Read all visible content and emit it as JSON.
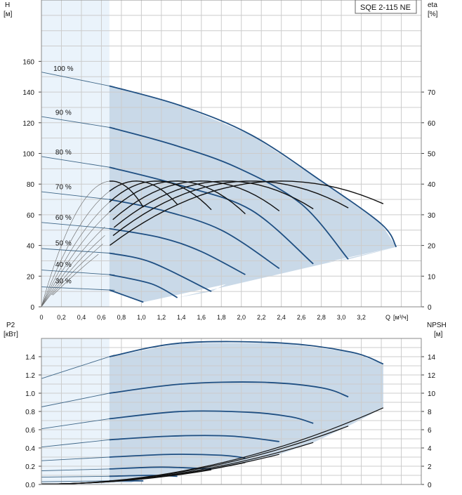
{
  "chart_data": [
    {
      "type": "line",
      "title": "SQE 2-115 NE",
      "ylabel": "H",
      "ylabel_unit": "[м]",
      "y2label": "eta",
      "y2label_unit": "[%]",
      "xlabel": "Q",
      "xlabel_unit": "[м³/ч]",
      "xlim": [
        0,
        3.8
      ],
      "ylim": [
        0,
        200
      ],
      "y2lim": [
        0,
        100
      ],
      "x_ticks": [
        "0",
        "0,2",
        "0,4",
        "0,6",
        "0,8",
        "1,0",
        "1,2",
        "1,4",
        "1,6",
        "1,8",
        "2,0",
        "2,2",
        "2,4",
        "2,6",
        "2,8",
        "3,0",
        "3,2"
      ],
      "y_ticks": [
        "0",
        "20",
        "40",
        "60",
        "80",
        "100",
        "120",
        "140",
        "160"
      ],
      "y2_ticks": [
        "0",
        "10",
        "20",
        "30",
        "40",
        "50",
        "60",
        "70"
      ],
      "grid": true,
      "operating_range_q_min": 0.68,
      "head_curves": [
        {
          "name": "100 %",
          "points": [
            [
              0,
              153
            ],
            [
              0.68,
              144
            ],
            [
              1.4,
              131
            ],
            [
              2.1,
              112
            ],
            [
              2.8,
              82
            ],
            [
              3.4,
              54
            ],
            [
              3.55,
              39
            ]
          ]
        },
        {
          "name": "90 %",
          "points": [
            [
              0,
              124
            ],
            [
              0.68,
              117
            ],
            [
              1.3,
              106
            ],
            [
              1.95,
              91
            ],
            [
              2.6,
              67
            ],
            [
              3.07,
              31
            ]
          ]
        },
        {
          "name": "80 %",
          "points": [
            [
              0,
              98
            ],
            [
              0.68,
              91
            ],
            [
              1.4,
              79
            ],
            [
              2.1,
              63
            ],
            [
              2.72,
              28
            ]
          ]
        },
        {
          "name": "70 %",
          "points": [
            [
              0,
              75
            ],
            [
              0.68,
              70
            ],
            [
              1.2,
              63
            ],
            [
              1.8,
              50
            ],
            [
              2.38,
              25
            ]
          ]
        },
        {
          "name": "60 %",
          "points": [
            [
              0,
              55
            ],
            [
              0.68,
              51
            ],
            [
              1.2,
              45
            ],
            [
              1.6,
              36
            ],
            [
              2.04,
              21
            ]
          ]
        },
        {
          "name": "50 %",
          "points": [
            [
              0,
              38
            ],
            [
              0.68,
              35
            ],
            [
              1.1,
              29
            ],
            [
              1.7,
              10
            ]
          ]
        },
        {
          "name": "40 %",
          "points": [
            [
              0,
              24
            ],
            [
              0.68,
              21
            ],
            [
              1.1,
              15
            ],
            [
              1.36,
              6
            ]
          ]
        },
        {
          "name": "30 %",
          "points": [
            [
              0,
              13
            ],
            [
              0.68,
              11
            ],
            [
              1.02,
              3
            ]
          ]
        }
      ],
      "efficiency_curves": [
        {
          "peak_q": 0.7,
          "end_q": 1.02,
          "peak_eta": 41
        },
        {
          "peak_q": 0.95,
          "end_q": 1.36,
          "peak_eta": 41
        },
        {
          "peak_q": 1.15,
          "end_q": 1.7,
          "peak_eta": 41
        },
        {
          "peak_q": 1.35,
          "end_q": 2.04,
          "peak_eta": 41
        },
        {
          "peak_q": 1.6,
          "end_q": 2.38,
          "peak_eta": 41
        },
        {
          "peak_q": 1.85,
          "end_q": 2.72,
          "peak_eta": 41
        },
        {
          "peak_q": 2.1,
          "end_q": 3.07,
          "peak_eta": 41
        },
        {
          "peak_q": 2.4,
          "end_q": 3.42,
          "peak_eta": 41
        }
      ]
    },
    {
      "type": "line",
      "ylabel": "P2",
      "ylabel_unit": "[кВт]",
      "y2label": "NPSH",
      "y2label_unit": "[м]",
      "xlim": [
        0,
        3.8
      ],
      "ylim": [
        0,
        1.6
      ],
      "y2lim": [
        0,
        16
      ],
      "y_ticks": [
        "0.0",
        "0.2",
        "0.4",
        "0.6",
        "0.8",
        "1.0",
        "1.2",
        "1.4"
      ],
      "y2_ticks": [
        "0",
        "2",
        "4",
        "6",
        "8",
        "10",
        "12",
        "14"
      ],
      "grid": true,
      "power_curves": [
        {
          "name": "100 %",
          "points": [
            [
              0,
              1.16
            ],
            [
              0.68,
              1.4
            ],
            [
              1.4,
              1.55
            ],
            [
              2.4,
              1.55
            ],
            [
              3.1,
              1.45
            ],
            [
              3.42,
              1.32
            ]
          ]
        },
        {
          "name": "90 %",
          "points": [
            [
              0,
              0.85
            ],
            [
              0.68,
              1.0
            ],
            [
              1.4,
              1.1
            ],
            [
              2.2,
              1.12
            ],
            [
              2.8,
              1.06
            ],
            [
              3.07,
              0.96
            ]
          ]
        },
        {
          "name": "80 %",
          "points": [
            [
              0,
              0.61
            ],
            [
              0.68,
              0.72
            ],
            [
              1.4,
              0.8
            ],
            [
              2.1,
              0.79
            ],
            [
              2.5,
              0.74
            ],
            [
              2.72,
              0.67
            ]
          ]
        },
        {
          "name": "70 %",
          "points": [
            [
              0,
              0.41
            ],
            [
              0.68,
              0.49
            ],
            [
              1.3,
              0.53
            ],
            [
              1.9,
              0.53
            ],
            [
              2.38,
              0.47
            ]
          ]
        },
        {
          "name": "60 %",
          "points": [
            [
              0,
              0.26
            ],
            [
              0.68,
              0.3
            ],
            [
              1.3,
              0.33
            ],
            [
              1.8,
              0.32
            ],
            [
              2.04,
              0.29
            ]
          ]
        },
        {
          "name": "50 %",
          "points": [
            [
              0,
              0.15
            ],
            [
              0.68,
              0.17
            ],
            [
              1.2,
              0.19
            ],
            [
              1.7,
              0.17
            ]
          ]
        },
        {
          "name": "40 %",
          "points": [
            [
              0,
              0.08
            ],
            [
              0.68,
              0.09
            ],
            [
              1.1,
              0.1
            ],
            [
              1.36,
              0.09
            ]
          ]
        },
        {
          "name": "30 %",
          "points": [
            [
              0,
              0.03
            ],
            [
              0.68,
              0.04
            ],
            [
              1.02,
              0.04
            ]
          ]
        }
      ],
      "npsh_curves": [
        {
          "end_q": 1.02,
          "end_npsh": 0.7
        },
        {
          "end_q": 1.36,
          "end_npsh": 1.1
        },
        {
          "end_q": 1.7,
          "end_npsh": 1.6
        },
        {
          "end_q": 2.04,
          "end_npsh": 2.4
        },
        {
          "end_q": 2.38,
          "end_npsh": 3.3
        },
        {
          "end_q": 2.72,
          "end_npsh": 4.6
        },
        {
          "end_q": 3.07,
          "end_npsh": 6.4
        },
        {
          "end_q": 3.42,
          "end_npsh": 8.4
        }
      ]
    }
  ]
}
